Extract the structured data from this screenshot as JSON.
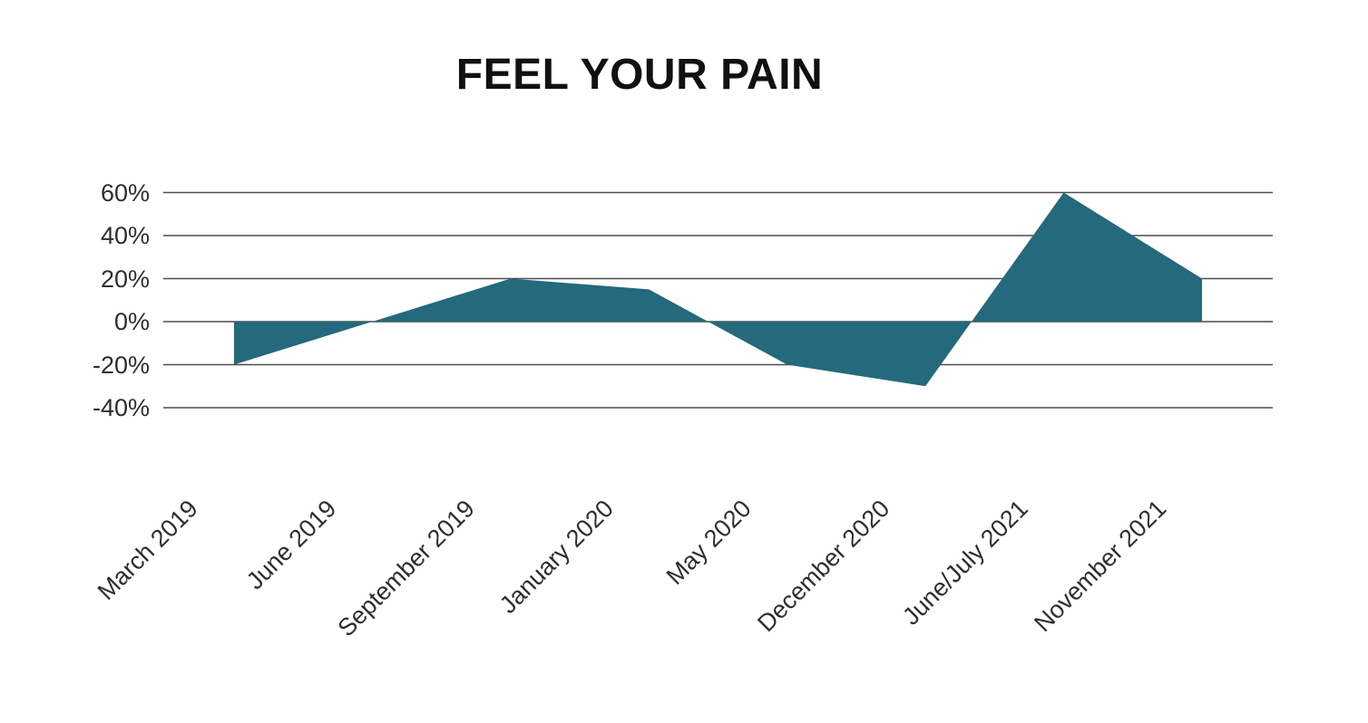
{
  "page": {
    "background": "#ffffff"
  },
  "chart_data": {
    "type": "area",
    "title": "FEEL YOUR PAIN",
    "categories": [
      "March 2019",
      "June 2019",
      "September 2019",
      "January 2020",
      "May 2020",
      "December 2020",
      "June/July 2021",
      "November 2021"
    ],
    "values": [
      -20,
      0,
      20,
      15,
      -20,
      -30,
      60,
      20
    ],
    "unit": "%",
    "y_ticks_labels": [
      "60%",
      "40%",
      "20%",
      "0%",
      "-20%",
      "-40%"
    ],
    "y_ticks_values": [
      60,
      40,
      20,
      0,
      -20,
      -40
    ],
    "ylim": [
      -40,
      60
    ],
    "xlabel": "",
    "ylabel": "",
    "grid": true,
    "legend": false,
    "x_label_rotation_deg": 45,
    "fill_color": "#24697C",
    "grid_color": "#4d4d4d",
    "text_color": "#2e2e2e",
    "title_color": "#111111"
  }
}
